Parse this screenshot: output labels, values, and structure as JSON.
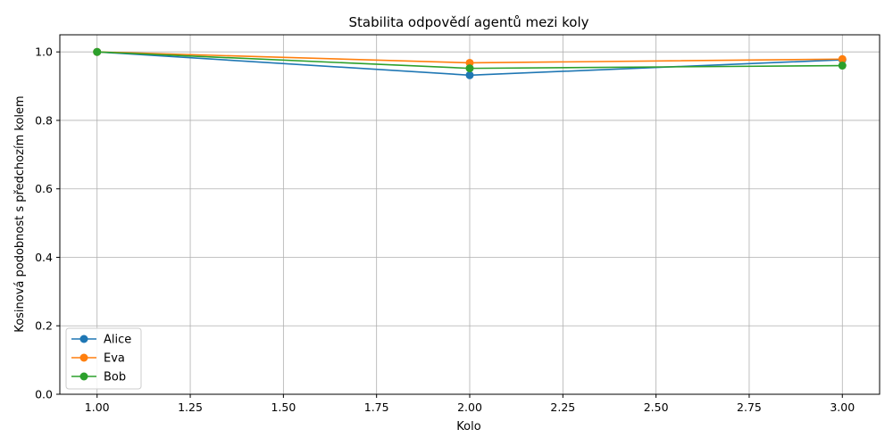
{
  "chart_data": {
    "type": "line",
    "title": "Stabilita odpovědí agentů mezi koly",
    "xlabel": "Kolo",
    "ylabel": "Kosinová podobnost s předchozím kolem",
    "xlim": [
      0.9,
      3.1
    ],
    "ylim": [
      0.0,
      1.05
    ],
    "xticks": [
      1.0,
      1.25,
      1.5,
      1.75,
      2.0,
      2.25,
      2.5,
      2.75,
      3.0
    ],
    "xtick_labels": [
      "1.00",
      "1.25",
      "1.50",
      "1.75",
      "2.00",
      "2.25",
      "2.50",
      "2.75",
      "3.00"
    ],
    "yticks": [
      0.0,
      0.2,
      0.4,
      0.6,
      0.8,
      1.0
    ],
    "ytick_labels": [
      "0.0",
      "0.2",
      "0.4",
      "0.6",
      "0.8",
      "1.0"
    ],
    "grid": true,
    "legend_position": "bottom-left",
    "x": [
      1,
      2,
      3
    ],
    "series": [
      {
        "name": "Alice",
        "color": "#1f77b4",
        "marker": "circle",
        "values": [
          1.0,
          0.932,
          0.977
        ]
      },
      {
        "name": "Eva",
        "color": "#ff7f0e",
        "marker": "circle",
        "values": [
          1.0,
          0.968,
          0.979
        ]
      },
      {
        "name": "Bob",
        "color": "#2ca02c",
        "marker": "circle",
        "values": [
          1.0,
          0.952,
          0.96
        ]
      }
    ]
  }
}
